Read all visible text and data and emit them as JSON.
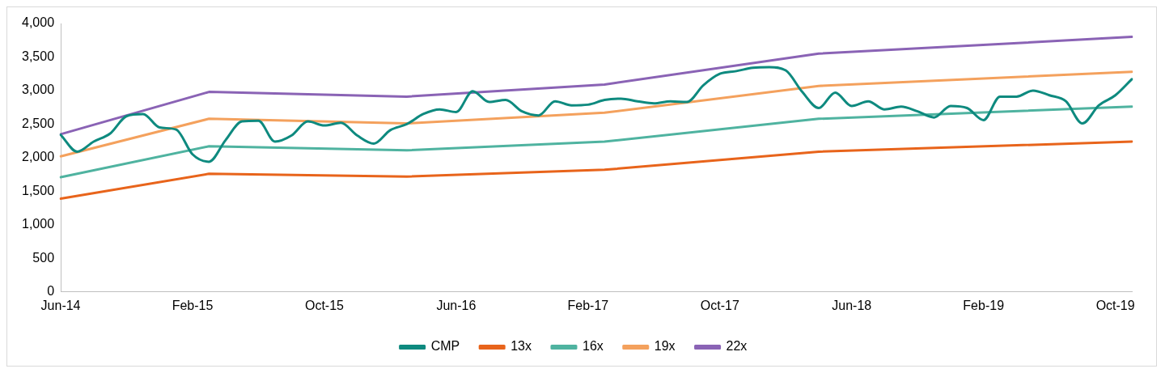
{
  "chart_data": {
    "type": "line",
    "categories": [
      "Jun-14",
      null,
      null,
      null,
      null,
      null,
      null,
      null,
      "Feb-15",
      null,
      null,
      null,
      null,
      null,
      null,
      null,
      "Oct-15",
      null,
      null,
      null,
      null,
      null,
      null,
      null,
      "Jun-16",
      null,
      null,
      null,
      null,
      null,
      null,
      null,
      "Feb-17",
      null,
      null,
      null,
      null,
      null,
      null,
      null,
      "Oct-17",
      null,
      null,
      null,
      null,
      null,
      null,
      null,
      "Jun-18",
      null,
      null,
      null,
      null,
      null,
      null,
      null,
      "Feb-19",
      null,
      null,
      null,
      null,
      null,
      null,
      null,
      "Oct-19",
      null
    ],
    "series": [
      {
        "name": "CMP",
        "color": "#0e8a7f",
        "values": [
          2340,
          2090,
          2240,
          2360,
          2620,
          2650,
          2450,
          2420,
          2050,
          1940,
          2260,
          2540,
          2550,
          2240,
          2330,
          2540,
          2480,
          2520,
          2330,
          2210,
          2410,
          2500,
          2650,
          2720,
          2680,
          2990,
          2830,
          2860,
          2690,
          2630,
          2840,
          2780,
          2790,
          2860,
          2880,
          2840,
          2810,
          2840,
          2830,
          3080,
          3250,
          3290,
          3340,
          3350,
          3300,
          2980,
          2740,
          2970,
          2770,
          2840,
          2720,
          2760,
          2690,
          2600,
          2770,
          2740,
          2560,
          2910,
          2910,
          3000,
          2930,
          2840,
          2510,
          2780,
          2930,
          3170
        ]
      },
      {
        "name": "13x",
        "color": "#e8641b",
        "values": [
          1390,
          null,
          null,
          null,
          null,
          null,
          null,
          null,
          null,
          1760,
          null,
          null,
          null,
          null,
          null,
          null,
          null,
          null,
          null,
          null,
          null,
          1720,
          null,
          null,
          null,
          null,
          null,
          null,
          null,
          null,
          null,
          null,
          null,
          1820,
          null,
          null,
          null,
          null,
          null,
          null,
          null,
          null,
          null,
          null,
          null,
          null,
          2090,
          null,
          null,
          null,
          null,
          null,
          null,
          null,
          null,
          null,
          null,
          null,
          null,
          null,
          null,
          null,
          null,
          null,
          null,
          2240
        ]
      },
      {
        "name": "16x",
        "color": "#4fb3a0",
        "values": [
          1710,
          null,
          null,
          null,
          null,
          null,
          null,
          null,
          null,
          2170,
          null,
          null,
          null,
          null,
          null,
          null,
          null,
          null,
          null,
          null,
          null,
          2110,
          null,
          null,
          null,
          null,
          null,
          null,
          null,
          null,
          null,
          null,
          null,
          2240,
          null,
          null,
          null,
          null,
          null,
          null,
          null,
          null,
          null,
          null,
          null,
          null,
          2580,
          null,
          null,
          null,
          null,
          null,
          null,
          null,
          null,
          null,
          null,
          null,
          null,
          null,
          null,
          null,
          null,
          null,
          null,
          2760
        ]
      },
      {
        "name": "19x",
        "color": "#f4a15d",
        "values": [
          2020,
          null,
          null,
          null,
          null,
          null,
          null,
          null,
          null,
          2580,
          null,
          null,
          null,
          null,
          null,
          null,
          null,
          null,
          null,
          null,
          null,
          2510,
          null,
          null,
          null,
          null,
          null,
          null,
          null,
          null,
          null,
          null,
          null,
          2670,
          null,
          null,
          null,
          null,
          null,
          null,
          null,
          null,
          null,
          null,
          null,
          null,
          3070,
          null,
          null,
          null,
          null,
          null,
          null,
          null,
          null,
          null,
          null,
          null,
          null,
          null,
          null,
          null,
          null,
          null,
          null,
          3280
        ]
      },
      {
        "name": "22x",
        "color": "#8a63b5",
        "values": [
          2350,
          null,
          null,
          null,
          null,
          null,
          null,
          null,
          null,
          2980,
          null,
          null,
          null,
          null,
          null,
          null,
          null,
          null,
          null,
          null,
          null,
          2910,
          null,
          null,
          null,
          null,
          null,
          null,
          null,
          null,
          null,
          null,
          null,
          3090,
          null,
          null,
          null,
          null,
          null,
          null,
          null,
          null,
          null,
          null,
          null,
          null,
          3550,
          null,
          null,
          null,
          null,
          null,
          null,
          null,
          null,
          null,
          null,
          null,
          null,
          null,
          null,
          null,
          null,
          null,
          null,
          3800
        ]
      }
    ],
    "ylim": [
      0,
      4000
    ],
    "yticks": [
      {
        "value": 0,
        "label": "0"
      },
      {
        "value": 500,
        "label": "500"
      },
      {
        "value": 1000,
        "label": "1,000"
      },
      {
        "value": 1500,
        "label": "1,500"
      },
      {
        "value": 2000,
        "label": "2,000"
      },
      {
        "value": 2500,
        "label": "2,500"
      },
      {
        "value": 3000,
        "label": "3,000"
      },
      {
        "value": 3500,
        "label": "3,500"
      },
      {
        "value": 4000,
        "label": "4,000"
      }
    ],
    "grid": false,
    "legend": "bottom",
    "marker": "none",
    "line_style": "solid"
  }
}
